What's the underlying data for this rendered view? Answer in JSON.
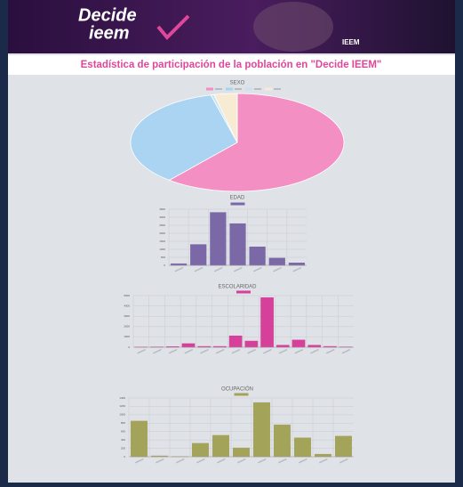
{
  "header": {
    "logo_top": "Decide",
    "logo_bottom": "ieem",
    "brand": "IEEM"
  },
  "page_title": "Estadística de participación de la población en \"Decide IEEM\"",
  "chart_data": [
    {
      "type": "pie",
      "title": "SEXO",
      "categories": [
        null,
        null,
        null,
        null
      ],
      "values": [
        61,
        35,
        0.5,
        3.5
      ],
      "colors": [
        "#f48fc3",
        "#aad4f2",
        "#c9e3f5",
        "#f7ecd3"
      ],
      "legend": "top"
    },
    {
      "type": "bar",
      "title": "EDAD",
      "categories": [
        null,
        null,
        null,
        null,
        null,
        null,
        null
      ],
      "values": [
        100,
        1300,
        3300,
        2600,
        1150,
        450,
        150
      ],
      "color": "#7b68a6",
      "ylim": [
        0,
        3500
      ],
      "yticks": [
        0,
        500,
        1000,
        1500,
        2000,
        2500,
        3000,
        3500
      ],
      "grid": true,
      "legend": "top"
    },
    {
      "type": "bar",
      "title": "ESCOLARIDAD",
      "categories": [
        null,
        null,
        null,
        null,
        null,
        null,
        null,
        null,
        null,
        null,
        null,
        null,
        null,
        null
      ],
      "values": [
        20,
        30,
        60,
        350,
        80,
        80,
        1100,
        600,
        4800,
        200,
        700,
        200,
        80,
        30
      ],
      "color": "#d6409a",
      "ylim": [
        0,
        5000
      ],
      "yticks": [
        0,
        1000,
        2000,
        3000,
        4000,
        5000
      ],
      "grid": true,
      "legend": "top"
    },
    {
      "type": "bar",
      "title": "OCUPACIÓN",
      "categories": [
        null,
        null,
        null,
        null,
        null,
        null,
        null,
        null,
        null,
        null,
        null
      ],
      "values": [
        850,
        20,
        5,
        320,
        510,
        210,
        1290,
        760,
        450,
        60,
        490
      ],
      "color": "#a3a35a",
      "ylim": [
        0,
        1400
      ],
      "yticks": [
        0,
        200,
        400,
        600,
        800,
        1000,
        1200,
        1400
      ],
      "grid": true,
      "legend": "top"
    }
  ]
}
